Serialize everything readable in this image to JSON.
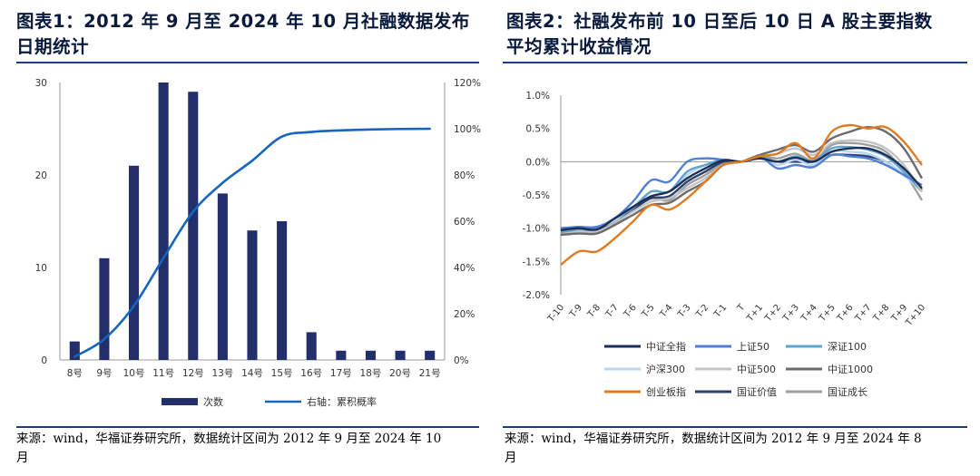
{
  "chart_data": [
    {
      "type": "bar",
      "title": "图表1：2012 年 9 月至 2024 年 10 月社融数据发布日期统计",
      "categories": [
        "8号",
        "9号",
        "10号",
        "11号",
        "12号",
        "13号",
        "14号",
        "15号",
        "16号",
        "17号",
        "18号",
        "20号",
        "21号"
      ],
      "series": [
        {
          "name": "次数",
          "type": "bar",
          "axis": "left",
          "color": "#232f6b",
          "values": [
            2,
            11,
            21,
            30,
            29,
            18,
            14,
            15,
            3,
            1,
            1,
            1,
            1
          ]
        },
        {
          "name": "右轴：累积概率",
          "type": "line",
          "axis": "right",
          "color": "#1565c0",
          "values": [
            1.4,
            9.0,
            23.4,
            44.1,
            64.1,
            76.6,
            86.2,
            96.6,
            98.6,
            99.3,
            99.7,
            99.9,
            100
          ]
        }
      ],
      "yleft": {
        "ylim": [
          0,
          30
        ],
        "ticks": [
          "0",
          "10",
          "20",
          "30"
        ]
      },
      "yright": {
        "ylim": [
          0,
          120
        ],
        "ticks": [
          "0%",
          "20%",
          "40%",
          "60%",
          "80%",
          "100%",
          "120%"
        ]
      },
      "legend": "bottom",
      "grid": false,
      "source": "来源：wind，华福证券研究所，数据统计区间为 2012 年 9 月至 2024 年 10 月"
    },
    {
      "type": "line",
      "title": "图表2：社融发布前 10 日至后 10 日 A 股主要指数平均累计收益情况",
      "x": [
        "T-10",
        "T-9",
        "T-8",
        "T-7",
        "T-6",
        "T-5",
        "T-4",
        "T-3",
        "T-2",
        "T-1",
        "T",
        "T+1",
        "T+2",
        "T+3",
        "T+4",
        "T+5",
        "T+6",
        "T+7",
        "T+8",
        "T+9",
        "T+10"
      ],
      "ylim": [
        -2.0,
        1.0
      ],
      "yticks": [
        "1.0%",
        "0.5%",
        "0.0%",
        "-0.5%",
        "-1.0%",
        "-1.5%",
        "-2.0%"
      ],
      "series": [
        {
          "name": "中证全指",
          "color": "#1c2f55",
          "values": [
            -1.03,
            -1.0,
            -1.02,
            -0.85,
            -0.68,
            -0.52,
            -0.45,
            -0.25,
            -0.1,
            0.02,
            0.0,
            0.05,
            0.0,
            0.06,
            0.0,
            0.15,
            0.2,
            0.2,
            0.1,
            -0.1,
            -0.4
          ]
        },
        {
          "name": "上证50",
          "color": "#4f7fd6",
          "values": [
            -1.0,
            -0.98,
            -0.98,
            -0.85,
            -0.6,
            -0.28,
            -0.3,
            0.0,
            0.05,
            0.03,
            0.0,
            0.08,
            -0.1,
            -0.05,
            -0.08,
            0.1,
            0.08,
            0.05,
            -0.05,
            -0.2,
            -0.35
          ]
        },
        {
          "name": "深证100",
          "color": "#5fa1cf",
          "values": [
            -1.05,
            -1.02,
            -1.0,
            -0.85,
            -0.7,
            -0.45,
            -0.45,
            -0.15,
            -0.05,
            0.03,
            0.0,
            0.08,
            0.0,
            0.08,
            0.0,
            0.2,
            0.22,
            0.18,
            0.08,
            -0.15,
            -0.45
          ]
        },
        {
          "name": "沪深300",
          "color": "#b8d6ec",
          "values": [
            -1.02,
            -1.0,
            -1.0,
            -0.88,
            -0.68,
            -0.45,
            -0.45,
            -0.2,
            -0.05,
            0.03,
            0.0,
            0.08,
            -0.05,
            0.03,
            -0.05,
            0.15,
            0.15,
            0.12,
            0.0,
            -0.2,
            -0.45
          ]
        },
        {
          "name": "中证500",
          "color": "#c4c4c4",
          "values": [
            -1.1,
            -1.05,
            -1.05,
            -0.92,
            -0.75,
            -0.6,
            -0.55,
            -0.4,
            -0.25,
            -0.05,
            0.0,
            0.08,
            0.12,
            0.2,
            0.1,
            0.28,
            0.32,
            0.3,
            0.2,
            -0.05,
            -0.45
          ]
        },
        {
          "name": "中证1000",
          "color": "#6b6b6b",
          "values": [
            -1.1,
            -1.08,
            -1.08,
            -0.95,
            -0.8,
            -0.65,
            -0.62,
            -0.45,
            -0.3,
            -0.05,
            0.0,
            0.1,
            0.18,
            0.25,
            0.15,
            0.35,
            0.45,
            0.52,
            0.45,
            0.2,
            -0.25
          ]
        },
        {
          "name": "创业板指",
          "color": "#e07b22",
          "values": [
            -1.55,
            -1.35,
            -1.35,
            -1.15,
            -0.9,
            -0.65,
            -0.72,
            -0.55,
            -0.3,
            -0.05,
            0.0,
            0.08,
            0.12,
            0.28,
            0.05,
            0.45,
            0.55,
            0.5,
            0.52,
            0.3,
            -0.05
          ]
        },
        {
          "name": "国证价值",
          "color": "#2b3f6e",
          "values": [
            -1.05,
            -1.02,
            -1.02,
            -0.9,
            -0.72,
            -0.55,
            -0.52,
            -0.3,
            -0.15,
            0.0,
            0.0,
            0.05,
            0.0,
            0.0,
            0.0,
            0.1,
            0.1,
            0.08,
            0.0,
            -0.2,
            -0.42
          ]
        },
        {
          "name": "国证成长",
          "color": "#9e9e9e",
          "values": [
            -1.08,
            -1.05,
            -1.05,
            -0.9,
            -0.72,
            -0.55,
            -0.58,
            -0.35,
            -0.2,
            -0.02,
            0.0,
            0.08,
            0.05,
            0.12,
            0.02,
            0.25,
            0.28,
            0.25,
            0.15,
            -0.15,
            -0.58
          ]
        }
      ],
      "legend": "bottom",
      "grid": false,
      "source": "来源：wind，华福证券研究所，数据统计区间为 2012 年 9 月至 2024 年 8 月"
    }
  ],
  "panels": {
    "left": {
      "title_line1": "图表1：2012 年 9 月至 2024 年 10 月社融数据发布",
      "title_line2": "日期统计",
      "source_line1": "来源：wind，华福证券研究所，数据统计区间为 2012 年 9 月至 2024 年 10",
      "source_line2": "月"
    },
    "right": {
      "title_line1": "图表2：社融发布前 10 日至后 10 日 A 股主要指数",
      "title_line2": "平均累计收益情况",
      "source_line1": "来源：wind，华福证券研究所，数据统计区间为 2012 年 9 月至 2024 年 8",
      "source_line2": "月"
    }
  }
}
